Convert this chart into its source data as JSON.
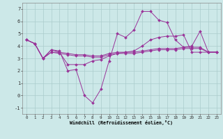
{
  "xlabel": "Windchill (Refroidissement éolien,°C)",
  "background_color": "#cce8e8",
  "line_color": "#993399",
  "grid_color": "#aacccc",
  "xlim": [
    -0.5,
    23.5
  ],
  "ylim": [
    -1.5,
    7.5
  ],
  "yticks": [
    -1,
    0,
    1,
    2,
    3,
    4,
    5,
    6,
    7
  ],
  "xticks": [
    0,
    1,
    2,
    3,
    4,
    5,
    6,
    7,
    8,
    9,
    10,
    11,
    12,
    13,
    14,
    15,
    16,
    17,
    18,
    19,
    20,
    21,
    22,
    23
  ],
  "series": [
    [
      4.5,
      4.2,
      3.0,
      3.7,
      3.6,
      2.0,
      2.1,
      0.0,
      -0.6,
      0.5,
      2.8,
      5.0,
      4.7,
      5.3,
      6.8,
      6.8,
      6.1,
      5.9,
      4.5,
      3.9,
      4.0,
      5.2,
      3.5,
      3.5
    ],
    [
      4.5,
      4.2,
      3.0,
      3.5,
      3.5,
      3.4,
      3.3,
      3.3,
      3.2,
      3.2,
      3.4,
      3.5,
      3.5,
      3.5,
      3.6,
      3.7,
      3.8,
      3.8,
      3.8,
      3.9,
      3.9,
      3.9,
      3.5,
      3.5
    ],
    [
      4.5,
      4.2,
      3.0,
      3.5,
      3.4,
      3.3,
      3.2,
      3.2,
      3.1,
      3.1,
      3.3,
      3.4,
      3.4,
      3.4,
      3.5,
      3.6,
      3.7,
      3.7,
      3.7,
      3.8,
      3.8,
      3.8,
      3.5,
      3.5
    ],
    [
      4.5,
      4.2,
      3.0,
      3.7,
      3.5,
      2.5,
      2.5,
      2.5,
      2.8,
      2.9,
      3.2,
      3.4,
      3.5,
      3.6,
      4.0,
      4.5,
      4.7,
      4.8,
      4.8,
      4.9,
      3.5,
      3.5,
      3.5,
      3.5
    ]
  ]
}
